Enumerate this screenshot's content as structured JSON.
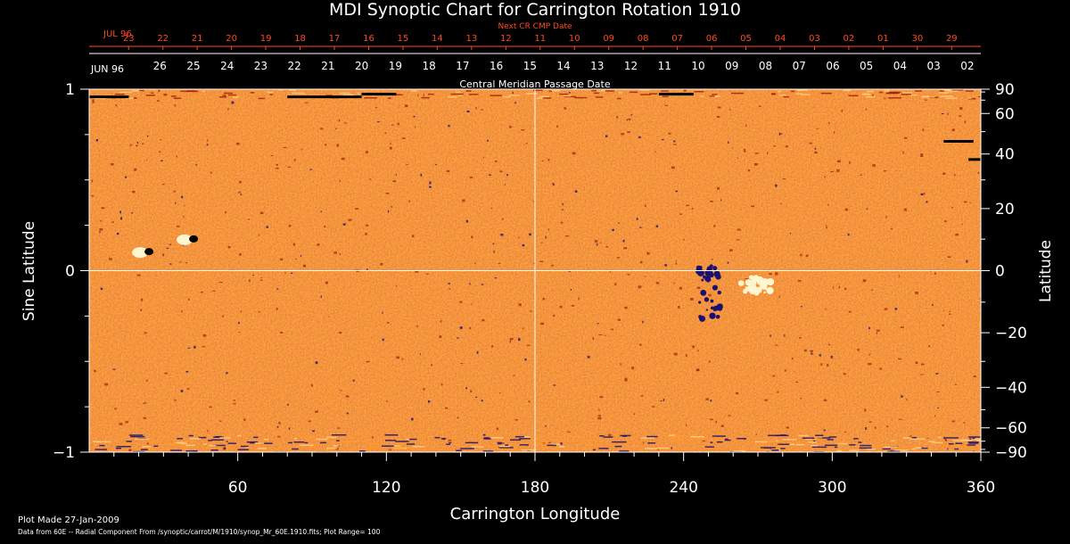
{
  "chart_data": {
    "type": "heatmap",
    "title": "MDI Synoptic Chart for Carrington Rotation 1910",
    "colors": {
      "background": "#000000",
      "map_base": "#e8480d",
      "map_light": "#ff9a2a",
      "map_dark": "#a01c08",
      "positive": "#ffffff",
      "negative": "#1a1070",
      "next_dates_color": "#ff4a1c",
      "axis_color": "#ffffff"
    },
    "next_cr_axis": {
      "label": "Next CR CMP Date",
      "month_label": "JUL 96",
      "dates": [
        "23",
        "22",
        "21",
        "20",
        "19",
        "18",
        "17",
        "16",
        "15",
        "14",
        "13",
        "12",
        "11",
        "10",
        "09",
        "08",
        "07",
        "06",
        "05",
        "04",
        "03",
        "02",
        "01",
        "30",
        "29"
      ]
    },
    "cmp_axis": {
      "label": "Central Meridian Passage Date",
      "month_label": "JUN 96",
      "dates": [
        "26",
        "25",
        "24",
        "23",
        "22",
        "21",
        "20",
        "19",
        "18",
        "17",
        "16",
        "15",
        "14",
        "13",
        "12",
        "11",
        "10",
        "09",
        "08",
        "07",
        "06",
        "05",
        "04",
        "03",
        "02"
      ]
    },
    "x_axis": {
      "label": "Carrington Longitude",
      "range": [
        0,
        360
      ],
      "ticks": [
        60,
        120,
        180,
        240,
        300,
        360
      ],
      "tick_labels": [
        "60",
        "120",
        "180",
        "240",
        "300",
        "360"
      ]
    },
    "y_left_axis": {
      "label": "Sine Latitude",
      "range": [
        -1,
        1
      ],
      "ticks": [
        1,
        0,
        -1
      ],
      "tick_labels": [
        "1",
        "0",
        "−1"
      ]
    },
    "y_right_axis": {
      "label": "Latitude",
      "ticks": [
        90,
        60,
        40,
        20,
        0,
        -20,
        -40,
        -60,
        -90
      ],
      "tick_labels": [
        "90",
        "60",
        "40",
        "20",
        "0",
        "−20",
        "−40",
        "−60",
        "−90"
      ]
    },
    "gridlines": {
      "longitude": 180,
      "sine_latitude": 0
    },
    "active_regions": [
      {
        "lon": 40,
        "sin_lat": 0.17,
        "polarity": "bipolar"
      },
      {
        "lon": 22,
        "sin_lat": 0.1,
        "polarity": "bipolar"
      },
      {
        "lon": 250,
        "sin_lat": -0.12,
        "polarity": "negative"
      },
      {
        "lon": 270,
        "sin_lat": -0.08,
        "polarity": "positive"
      }
    ],
    "plot_range": 100
  },
  "footer": {
    "plot_made": "Plot Made 27-Jan-2009",
    "data_source": "Data from 60E -- Radial Component From /synoptic/carrot/M/1910/synop_Mr_60E.1910.fits; Plot Range= 100"
  }
}
